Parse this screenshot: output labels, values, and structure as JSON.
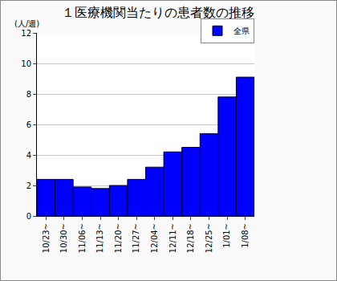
{
  "chart_data": {
    "type": "bar",
    "title": "１医療機関当たりの患者数の推移",
    "y_label": "(人/週)",
    "categories": [
      "10/23~",
      "10/30~",
      "11/06~",
      "11/13~",
      "11/20~",
      "11/27~",
      "12/04~",
      "12/11~",
      "12/18~",
      "12/25~",
      "1/01~",
      "1/08~"
    ],
    "series": [
      {
        "name": "全県",
        "color": "#0000ff",
        "values": [
          2.4,
          2.4,
          1.9,
          1.8,
          2.0,
          2.4,
          3.2,
          4.2,
          4.5,
          5.4,
          7.8,
          9.1
        ]
      }
    ],
    "ylim": [
      0,
      12
    ],
    "yticks": [
      0,
      2,
      4,
      6,
      8,
      10,
      12
    ],
    "grid": true,
    "legend": "top-right"
  }
}
